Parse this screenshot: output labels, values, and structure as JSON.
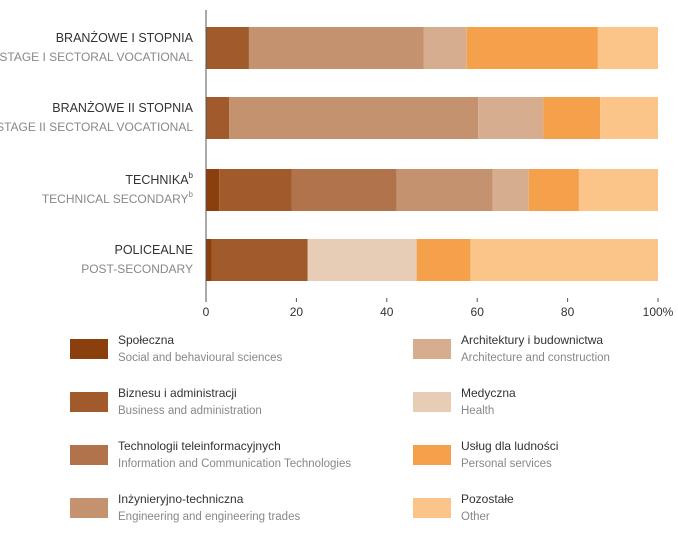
{
  "chart_data": {
    "type": "stacked-bar-horizontal",
    "categories": [
      "BRANŻOWE I STOPNIA",
      "BRANŻOWE II STOPNIA",
      "TECHNIKA",
      "POLICEALNE"
    ],
    "categories_en": [
      "STAGE I SECTORAL VOCATIONAL",
      "STAGE II SECTORAL VOCATIONAL",
      "TECHNICAL SECONDARY",
      "POST-SECONDARY"
    ],
    "category_footnotes": [
      {
        "index": 2,
        "mark": "b"
      }
    ],
    "series": [
      {
        "name": "Społeczna",
        "name_en": "Social and behavioural sciences",
        "color": "#8b3f0c",
        "values": [
          0,
          0,
          2.9,
          1.3
        ]
      },
      {
        "name": "Biznesu i administracji",
        "name_en": "Business and administration",
        "color": "#a05a2c",
        "values": [
          9.5,
          5.1,
          16.1,
          21.2
        ]
      },
      {
        "name": "Technologii teleinformacyjnych",
        "name_en": "Information and Communication Technologies",
        "color": "#b0734c",
        "values": [
          0,
          0,
          23.2,
          0
        ]
      },
      {
        "name": "Inżynieryjno-techniczna",
        "name_en": "Engineering and engineering trades",
        "color": "#c4926e",
        "values": [
          38.7,
          55.1,
          21.2,
          0
        ]
      },
      {
        "name": "Architektury i budownictwa",
        "name_en": "Architecture and construction",
        "color": "#d7ad90",
        "values": [
          9.5,
          14.4,
          8,
          0
        ]
      },
      {
        "name": "Medyczna",
        "name_en": "Health",
        "color": "#e7ccb6",
        "values": [
          0,
          0,
          0,
          24.1
        ]
      },
      {
        "name": "Usług dla ludności",
        "name_en": "Personal services",
        "color": "#f5a04b",
        "values": [
          29,
          12.6,
          11.1,
          11.9
        ]
      },
      {
        "name": "Pozostałe",
        "name_en": "Other",
        "color": "#fbc58a",
        "values": [
          13.3,
          12.8,
          17.5,
          41.5
        ]
      }
    ],
    "xlim": [
      0,
      100
    ],
    "xticks": [
      0,
      20,
      40,
      60,
      80,
      {
        "value": 100,
        "label": "100%"
      }
    ]
  }
}
